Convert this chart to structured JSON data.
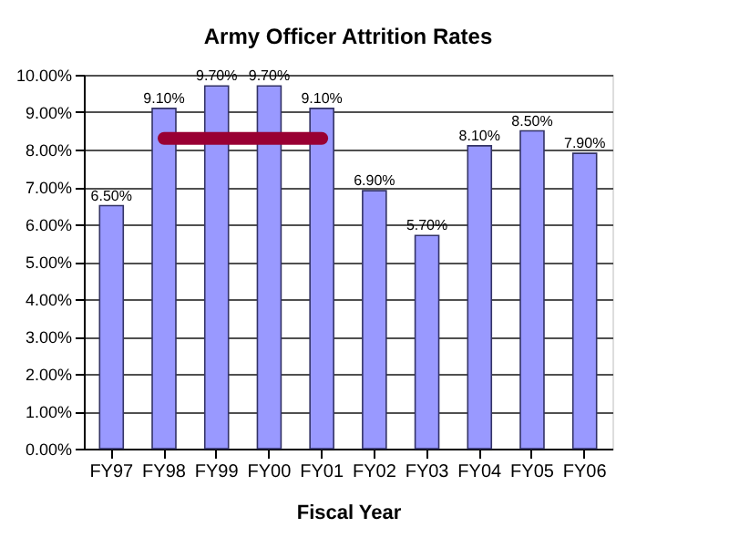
{
  "chart_data": {
    "type": "bar",
    "title": "Army Officer Attrition Rates",
    "xlabel": "Fiscal Year",
    "categories": [
      "FY97",
      "FY98",
      "FY99",
      "FY00",
      "FY01",
      "FY02",
      "FY03",
      "FY04",
      "FY05",
      "FY06"
    ],
    "series": [
      {
        "type": "bar",
        "color": "#9999ff",
        "values": [
          6.5,
          9.1,
          9.7,
          9.7,
          9.1,
          6.9,
          5.7,
          8.1,
          8.5,
          7.9
        ],
        "value_labels": [
          "6.50%",
          "9.10%",
          "9.70%",
          "9.70%",
          "9.10%",
          "6.90%",
          "5.70%",
          "8.10%",
          "8.50%",
          "7.90%"
        ]
      },
      {
        "type": "line",
        "color": "#990033",
        "values": [
          null,
          8.3,
          8.3,
          8.3,
          8.3,
          null,
          null,
          null,
          null,
          null
        ]
      }
    ],
    "ylim": [
      0,
      10
    ],
    "yticks": [
      {
        "value": 0,
        "label": "0.00%"
      },
      {
        "value": 1,
        "label": "1.00%"
      },
      {
        "value": 2,
        "label": "2.00%"
      },
      {
        "value": 3,
        "label": "3.00%"
      },
      {
        "value": 4,
        "label": "4.00%"
      },
      {
        "value": 5,
        "label": "5.00%"
      },
      {
        "value": 6,
        "label": "6.00%"
      },
      {
        "value": 7,
        "label": "7.00%"
      },
      {
        "value": 8,
        "label": "8.00%"
      },
      {
        "value": 9,
        "label": "9.00%"
      },
      {
        "value": 10,
        "label": "10.00%"
      }
    ],
    "grid": "y",
    "legend": false
  }
}
